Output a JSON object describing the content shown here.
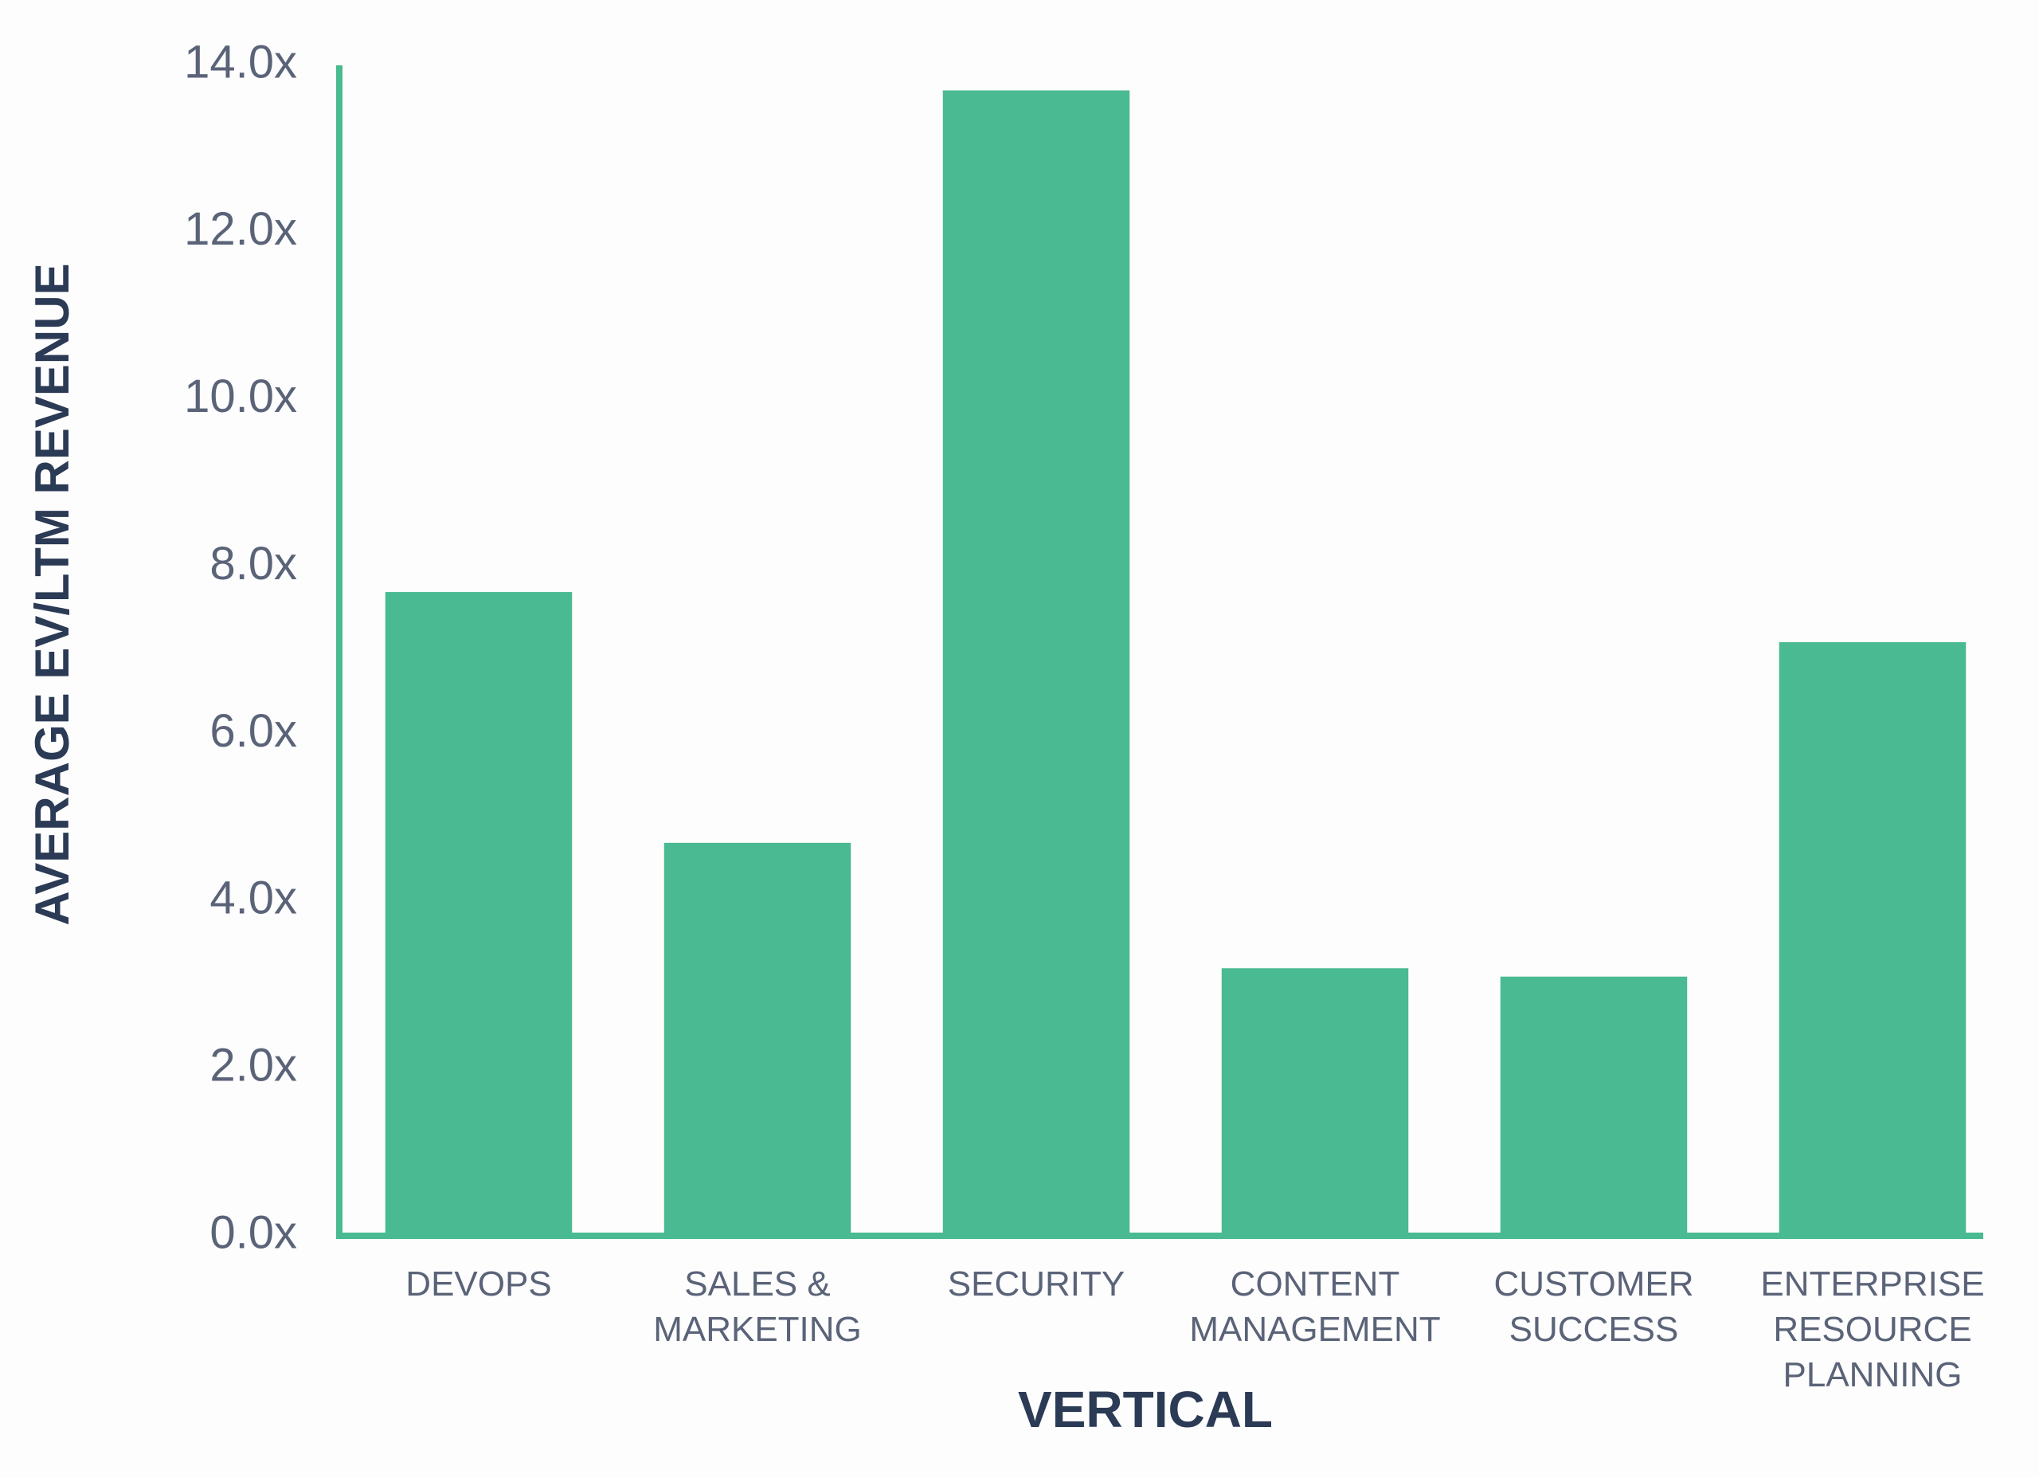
{
  "chart_data": {
    "type": "bar",
    "y_axis_label": "AVERAGE EV/LTM REVENUE",
    "x_axis_label": "VERTICAL",
    "categories": [
      "DEVOPS",
      "SALES &\nMARKETING",
      "SECURITY",
      "CONTENT\nMANAGEMENT",
      "CUSTOMER\nSUCCESS",
      "ENTERPRISE\nRESOURCE\nPLANNING"
    ],
    "values": [
      7.7,
      4.7,
      13.7,
      3.2,
      3.1,
      7.1
    ],
    "color": "#49ba91",
    "ylim": [
      0,
      14
    ],
    "yticks": [
      {
        "value": 0,
        "label": "0.0x"
      },
      {
        "value": 2,
        "label": "2.0x"
      },
      {
        "value": 4,
        "label": "4.0x"
      },
      {
        "value": 6,
        "label": "6.0x"
      },
      {
        "value": 8,
        "label": "8.0x"
      },
      {
        "value": 10,
        "label": "10.0x"
      },
      {
        "value": 12,
        "label": "12.0x"
      },
      {
        "value": 14,
        "label": "14.0x"
      }
    ],
    "grid": false
  }
}
